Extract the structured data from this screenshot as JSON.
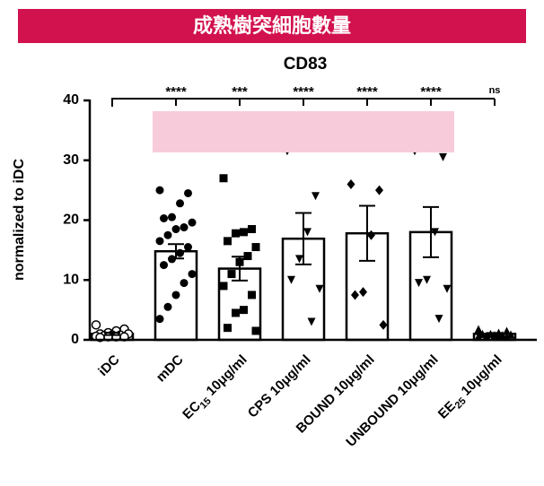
{
  "banner": "成熟樹突細胞數量",
  "chart_data": {
    "type": "bar",
    "title": "CD83",
    "y_label": "normalized to iDC",
    "categories": [
      "iDC",
      "mDC",
      "EC15 10μg/ml",
      "CPS 10μg/ml",
      "BOUND 10μg/ml",
      "UNBOUND 10μg/ml",
      "EE25 10μg/ml"
    ],
    "values": [
      1,
      14.8,
      11.9,
      16.9,
      17.8,
      18,
      1
    ],
    "errors": [
      0.2,
      1.2,
      2,
      4.3,
      4.6,
      4.2,
      0.15
    ],
    "markers": [
      "open-circle",
      "circle",
      "square",
      "triangle-down",
      "diamond",
      "triangle-down",
      "triangle-up"
    ],
    "points": [
      [
        2.5,
        1.8,
        1.5,
        1.2,
        1,
        1,
        0.8,
        0.8,
        0.7,
        0.6,
        0.5,
        0.5,
        0.5,
        0.4
      ],
      [
        25,
        24.5,
        22.8,
        20.5,
        20.3,
        19.6,
        18.8,
        18.5,
        17.5,
        16.5,
        15.5,
        14.5,
        13.5,
        12.5,
        11,
        9.5,
        7.5,
        5.5,
        3.5
      ],
      [
        27,
        18.5,
        18,
        17.8,
        16.5,
        15.5,
        14,
        13,
        11,
        9,
        7.5,
        5,
        4.5,
        2,
        1.5
      ],
      [
        31.5,
        24,
        18,
        13.5,
        10,
        8.5,
        3
      ],
      [
        26,
        25,
        17.5,
        8,
        7.5,
        2.5
      ],
      [
        31.5,
        30.5,
        18,
        10,
        9.5,
        8.5,
        3.5
      ],
      [
        1.8,
        1.5,
        1.2,
        1,
        1,
        0.9,
        0.8,
        0.8,
        0.7,
        0.6,
        0.5,
        0.5
      ]
    ],
    "significance": [
      null,
      "****",
      "***",
      "****",
      "****",
      "****",
      "ns"
    ],
    "ylim": [
      0,
      40
    ],
    "yticks": [
      0,
      10,
      20,
      30,
      40
    ],
    "color": "#ffffff"
  }
}
